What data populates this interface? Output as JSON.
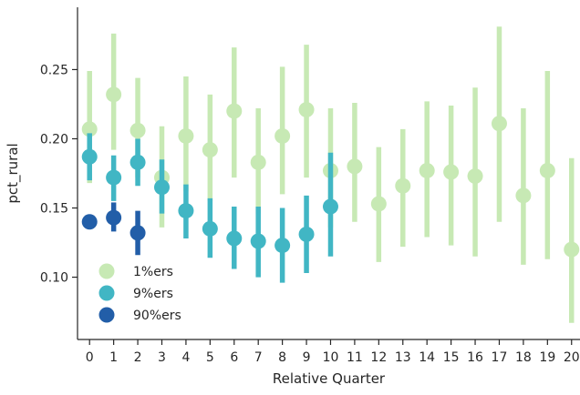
{
  "chart_data": {
    "type": "scatter",
    "xlabel": "Relative Quarter",
    "ylabel": "pct_rural",
    "xlim": [
      -0.5,
      20.35
    ],
    "ylim": [
      0.055,
      0.295
    ],
    "x_ticks": [
      0,
      1,
      2,
      3,
      4,
      5,
      6,
      7,
      8,
      9,
      10,
      11,
      12,
      13,
      14,
      15,
      16,
      17,
      18,
      19,
      20
    ],
    "y_ticks": [
      0.1,
      0.15,
      0.2,
      0.25
    ],
    "y_tick_labels": [
      "0.10",
      "0.15",
      "0.20",
      "0.25"
    ],
    "grid": false,
    "legend_position": "lower-left",
    "series": [
      {
        "name": "1%ers",
        "color": "#c7e9b4",
        "x": [
          0,
          1,
          2,
          3,
          4,
          5,
          6,
          7,
          8,
          9,
          10,
          11,
          12,
          13,
          14,
          15,
          16,
          17,
          18,
          19,
          20
        ],
        "y": [
          0.207,
          0.232,
          0.206,
          0.172,
          0.202,
          0.192,
          0.22,
          0.183,
          0.202,
          0.221,
          0.177,
          0.18,
          0.153,
          0.166,
          0.177,
          0.176,
          0.173,
          0.211,
          0.159,
          0.177,
          0.12
        ],
        "ci_low": [
          0.168,
          0.192,
          0.172,
          0.136,
          0.162,
          0.155,
          0.172,
          0.146,
          0.16,
          0.172,
          0.136,
          0.14,
          0.111,
          0.122,
          0.129,
          0.123,
          0.115,
          0.14,
          0.109,
          0.113,
          0.067
        ],
        "ci_high": [
          0.249,
          0.276,
          0.244,
          0.209,
          0.245,
          0.232,
          0.266,
          0.222,
          0.252,
          0.268,
          0.222,
          0.226,
          0.194,
          0.207,
          0.227,
          0.224,
          0.237,
          0.281,
          0.222,
          0.249,
          0.186
        ]
      },
      {
        "name": "9%ers",
        "color": "#41b6c4",
        "x": [
          0,
          1,
          2,
          3,
          4,
          5,
          6,
          7,
          8,
          9,
          10
        ],
        "y": [
          0.187,
          0.172,
          0.183,
          0.165,
          0.148,
          0.135,
          0.128,
          0.126,
          0.123,
          0.131,
          0.151
        ],
        "ci_low": [
          0.17,
          0.155,
          0.166,
          0.146,
          0.128,
          0.114,
          0.106,
          0.1,
          0.096,
          0.103,
          0.115
        ],
        "ci_high": [
          0.204,
          0.188,
          0.2,
          0.185,
          0.167,
          0.157,
          0.151,
          0.151,
          0.15,
          0.159,
          0.19
        ]
      },
      {
        "name": "90%ers",
        "color": "#225ea8",
        "x": [
          0,
          1,
          2
        ],
        "y": [
          0.14,
          0.143,
          0.132
        ],
        "ci_low": [
          0.136,
          0.133,
          0.116
        ],
        "ci_high": [
          0.145,
          0.154,
          0.148
        ]
      }
    ]
  }
}
